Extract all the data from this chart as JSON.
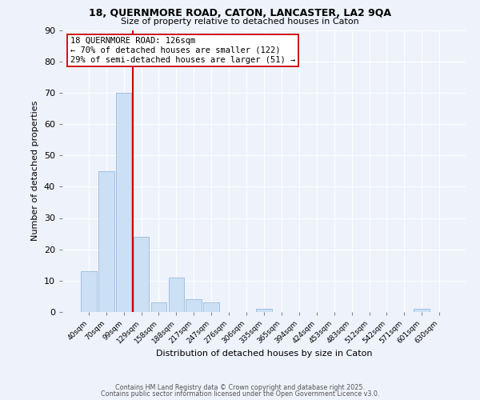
{
  "title1": "18, QUERNMORE ROAD, CATON, LANCASTER, LA2 9QA",
  "title2": "Size of property relative to detached houses in Caton",
  "xlabel": "Distribution of detached houses by size in Caton",
  "ylabel": "Number of detached properties",
  "bar_color": "#cce0f5",
  "bar_edge_color": "#99bbdd",
  "background_color": "#eef2fb",
  "grid_color": "#ffffff",
  "categories": [
    "40sqm",
    "70sqm",
    "99sqm",
    "129sqm",
    "158sqm",
    "188sqm",
    "217sqm",
    "247sqm",
    "276sqm",
    "306sqm",
    "335sqm",
    "365sqm",
    "394sqm",
    "424sqm",
    "453sqm",
    "483sqm",
    "512sqm",
    "542sqm",
    "571sqm",
    "601sqm",
    "630sqm"
  ],
  "values": [
    13,
    45,
    70,
    24,
    3,
    11,
    4,
    3,
    0,
    0,
    1,
    0,
    0,
    0,
    0,
    0,
    0,
    0,
    0,
    1,
    0
  ],
  "vline_color": "#cc0000",
  "vline_pos": 2.5,
  "annotation_text": "18 QUERNMORE ROAD: 126sqm\n← 70% of detached houses are smaller (122)\n29% of semi-detached houses are larger (51) →",
  "annotation_box_color": "#ffffff",
  "annotation_box_edge": "#cc0000",
  "ylim": [
    0,
    90
  ],
  "yticks": [
    0,
    10,
    20,
    30,
    40,
    50,
    60,
    70,
    80,
    90
  ],
  "footer1": "Contains HM Land Registry data © Crown copyright and database right 2025.",
  "footer2": "Contains public sector information licensed under the Open Government Licence v3.0."
}
